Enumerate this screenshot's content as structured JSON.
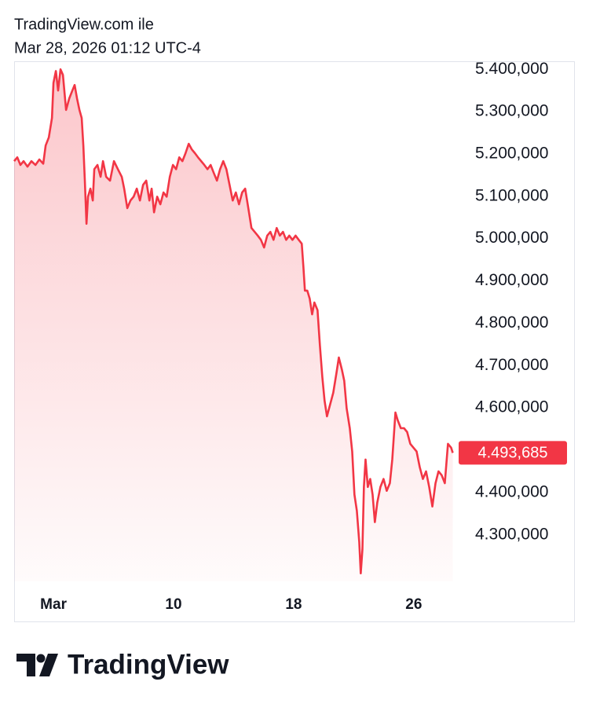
{
  "header": {
    "source": "TradingView.com ile",
    "timestamp": "Mar 28, 2026 01:12 UTC-4"
  },
  "logo": "TradingView",
  "chart_data": {
    "type": "area",
    "color": "#f23645",
    "x": [
      -0.62,
      -0.41,
      -0.2,
      0.01,
      0.27,
      0.53,
      0.8,
      1.06,
      1.32,
      1.48,
      1.69,
      1.9,
      2,
      2.16,
      2.31,
      2.47,
      2.63,
      2.84,
      3.05,
      3.26,
      3.41,
      3.57,
      3.73,
      3.88,
      3.99,
      4.09,
      4.2,
      4.3,
      4.46,
      4.62,
      4.72,
      4.93,
      5.14,
      5.3,
      5.51,
      5.77,
      6.03,
      6.29,
      6.55,
      6.71,
      6.92,
      7.13,
      7.34,
      7.55,
      7.76,
      7.97,
      8.18,
      8.39,
      8.54,
      8.7,
      8.91,
      9.12,
      9.33,
      9.54,
      9.75,
      9.96,
      10.17,
      10.38,
      10.59,
      10.8,
      11.01,
      11.21,
      11.42,
      11.63,
      11.84,
      12.05,
      12.26,
      12.47,
      12.68,
      12.89,
      13.1,
      13.31,
      13.52,
      13.73,
      13.94,
      14.15,
      14.36,
      14.57,
      14.77,
      14.98,
      15.19,
      15.4,
      15.61,
      15.82,
      16.03,
      16.24,
      16.45,
      16.66,
      16.87,
      17.08,
      17.29,
      17.5,
      17.71,
      17.92,
      18.13,
      18.34,
      18.54,
      18.65,
      18.75,
      18.91,
      19.07,
      19.23,
      19.38,
      19.59,
      19.75,
      19.91,
      20.06,
      20.22,
      20.43,
      20.64,
      20.85,
      21.01,
      21.21,
      21.37,
      21.53,
      21.74,
      21.9,
      22.05,
      22.21,
      22.37,
      22.47,
      22.58,
      22.68,
      22.79,
      22.94,
      23.1,
      23.26,
      23.41,
      23.57,
      23.78,
      23.99,
      24.2,
      24.41,
      24.57,
      24.78,
      24.93,
      25.14,
      25.35,
      25.56,
      25.77,
      25.98,
      26.19,
      26.4,
      26.61,
      26.82,
      27.03,
      27.24,
      27.45,
      27.65,
      27.86,
      28.07,
      28.28,
      28.49,
      28.6
    ],
    "values": [
      5183000,
      5192000,
      5174000,
      5183000,
      5170000,
      5183000,
      5174000,
      5187000,
      5177000,
      5220000,
      5239000,
      5285000,
      5368000,
      5396000,
      5350000,
      5400000,
      5387000,
      5304000,
      5331000,
      5350000,
      5363000,
      5331000,
      5304000,
      5285000,
      5220000,
      5137000,
      5035000,
      5099000,
      5118000,
      5090000,
      5164000,
      5174000,
      5146000,
      5183000,
      5146000,
      5137000,
      5183000,
      5164000,
      5146000,
      5118000,
      5072000,
      5090000,
      5099000,
      5118000,
      5090000,
      5127000,
      5137000,
      5090000,
      5118000,
      5062000,
      5099000,
      5081000,
      5109000,
      5099000,
      5146000,
      5174000,
      5164000,
      5192000,
      5183000,
      5202000,
      5224000,
      5211000,
      5202000,
      5192000,
      5183000,
      5174000,
      5164000,
      5174000,
      5155000,
      5137000,
      5164000,
      5183000,
      5164000,
      5127000,
      5090000,
      5109000,
      5081000,
      5109000,
      5118000,
      5072000,
      5025000,
      5016000,
      5007000,
      4997000,
      4979000,
      5007000,
      5016000,
      4997000,
      5025000,
      5007000,
      5016000,
      4997000,
      5007000,
      4997000,
      5007000,
      4997000,
      4988000,
      4933000,
      4877000,
      4877000,
      4858000,
      4821000,
      4849000,
      4831000,
      4747000,
      4673000,
      4617000,
      4580000,
      4608000,
      4636000,
      4682000,
      4719000,
      4691000,
      4664000,
      4599000,
      4552000,
      4497000,
      4395000,
      4357000,
      4283000,
      4209000,
      4265000,
      4413000,
      4478000,
      4413000,
      4432000,
      4395000,
      4330000,
      4376000,
      4413000,
      4432000,
      4404000,
      4422000,
      4478000,
      4589000,
      4571000,
      4552000,
      4552000,
      4543000,
      4515000,
      4506000,
      4497000,
      4460000,
      4432000,
      4450000,
      4413000,
      4367000,
      4422000,
      4450000,
      4441000,
      4422000,
      4515000,
      4506000,
      4493685
    ],
    "last_price": {
      "value": 4493685,
      "label": "4.493,685"
    },
    "xlim": [
      -0.62,
      29.2
    ],
    "xticks": [
      {
        "value": 2,
        "label": "Mar"
      },
      10,
      18,
      26
    ],
    "ylim": [
      4190000,
      5419000
    ],
    "yticks": [
      {
        "value": 5400000,
        "label": "5.400,000"
      },
      {
        "value": 5300000,
        "label": "5.300,000"
      },
      {
        "value": 5200000,
        "label": "5.200,000"
      },
      {
        "value": 5100000,
        "label": "5.100,000"
      },
      {
        "value": 5000000,
        "label": "5.000,000"
      },
      {
        "value": 4900000,
        "label": "4.900,000"
      },
      {
        "value": 4800000,
        "label": "4.800,000"
      },
      {
        "value": 4700000,
        "label": "4.700,000"
      },
      {
        "value": 4600000,
        "label": "4.600,000"
      },
      {
        "value": 4400000,
        "label": "4.400,000"
      },
      {
        "value": 4300000,
        "label": "4.300,000"
      }
    ],
    "grid": false
  }
}
